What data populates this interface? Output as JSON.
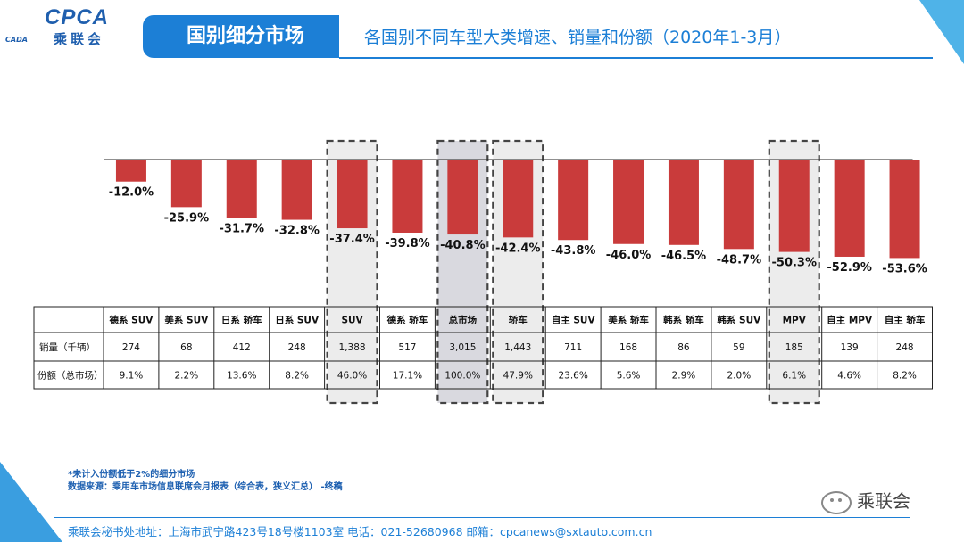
{
  "header": {
    "logo_en": "CPCA",
    "logo_cn": "乘联会",
    "logo_sub": "CADA",
    "title_main": "国别细分市场",
    "title_sub": "各国别不同车型大类增速、销量和份额（2020年1-3月）"
  },
  "table": {
    "row_labels": [
      "销量（千辆）",
      "份额（总市场）"
    ]
  },
  "chart_data": {
    "type": "bar",
    "title": "各国别不同车型大类增速、销量和份额（2020年1-3月）",
    "categories": [
      "德系 SUV",
      "美系 SUV",
      "日系 轿车",
      "日系 SUV",
      "SUV",
      "德系 轿车",
      "总市场",
      "轿车",
      "自主 SUV",
      "美系 轿车",
      "韩系 轿车",
      "韩系 SUV",
      "MPV",
      "自主 MPV",
      "自主 轿车"
    ],
    "value_labels": [
      "-12.0%",
      "-25.9%",
      "-31.7%",
      "-32.8%",
      "-37.4%",
      "-39.8%",
      "-40.8%",
      "-42.4%",
      "-43.8%",
      "-46.0%",
      "-46.5%",
      "-48.7%",
      "-50.3%",
      "-52.9%",
      "-53.6%"
    ],
    "values": [
      -12.0,
      -25.9,
      -31.7,
      -32.8,
      -37.4,
      -39.8,
      -40.8,
      -42.4,
      -43.8,
      -46.0,
      -46.5,
      -48.7,
      -50.3,
      -52.9,
      -53.6
    ],
    "sales": [
      "274",
      "68",
      "412",
      "248",
      "1,388",
      "517",
      "3,015",
      "1,443",
      "711",
      "168",
      "86",
      "59",
      "185",
      "139",
      "248"
    ],
    "shares": [
      "9.1%",
      "2.2%",
      "13.6%",
      "8.2%",
      "46.0%",
      "17.1%",
      "100.0%",
      "47.9%",
      "23.6%",
      "5.6%",
      "2.9%",
      "2.0%",
      "6.1%",
      "4.6%",
      "8.2%"
    ],
    "highlighted": [
      4,
      6,
      7,
      12
    ],
    "ylim": [
      -60,
      0
    ],
    "bar_color": "#c93b3b",
    "highlight_bg": "#ececec",
    "total_bg": "#d9d9df"
  },
  "notes": {
    "line1": "*未计入份额低于2%的细分市场",
    "line2": "数据来源：乘用车市场信息联席会月报表（综合表，狭义汇总）  -终稿"
  },
  "footer": {
    "text": "乘联会秘书处地址：上海市武宁路423号18号楼1103室  电话：021-52680968  邮箱：cpcanews@sxtauto.com.cn"
  },
  "wechat": {
    "label": "乘联会"
  }
}
